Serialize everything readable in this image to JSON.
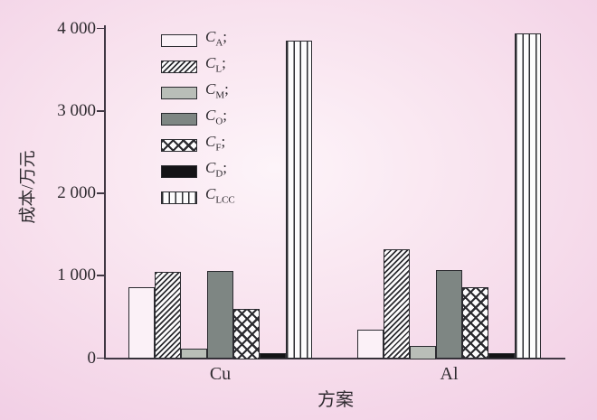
{
  "figure": {
    "background_center": "#fdf4f9",
    "background_edge": "#ebc1dc",
    "text_color": "#2f2b30",
    "axis_color": "#413844"
  },
  "chart_data": {
    "type": "bar",
    "title": "",
    "xlabel": "方案",
    "ylabel": "成本/万元",
    "categories": [
      "Cu",
      "Al"
    ],
    "ylim": [
      0,
      4000
    ],
    "grid": false,
    "legend_position": "upper-left-inside",
    "y_ticks": [
      {
        "value": 0,
        "label": "0"
      },
      {
        "value": 1000,
        "label": "1 000"
      },
      {
        "value": 2000,
        "label": "2 000"
      },
      {
        "value": 3000,
        "label": "3 000"
      },
      {
        "value": 4000,
        "label": "4 000"
      }
    ],
    "series": [
      {
        "key": "CA",
        "label_base": "C",
        "label_sub": "A",
        "label_sep": ";",
        "pattern": "plain",
        "values": [
          855,
          345
        ]
      },
      {
        "key": "CL",
        "label_base": "C",
        "label_sub": "L",
        "label_sep": ";",
        "pattern": "diag",
        "values": [
          1045,
          1320
        ]
      },
      {
        "key": "CM",
        "label_base": "C",
        "label_sub": "M",
        "label_sep": ";",
        "pattern": "lgray",
        "values": [
          110,
          150
        ]
      },
      {
        "key": "CO",
        "label_base": "C",
        "label_sub": "O",
        "label_sep": ";",
        "pattern": "gray",
        "values": [
          1060,
          1070
        ]
      },
      {
        "key": "CF",
        "label_base": "C",
        "label_sub": "F",
        "label_sep": ";",
        "pattern": "cross",
        "values": [
          600,
          860
        ]
      },
      {
        "key": "CD",
        "label_base": "C",
        "label_sub": "D",
        "label_sep": ";",
        "pattern": "black",
        "values": [
          55,
          65
        ]
      },
      {
        "key": "CLCC",
        "label_base": "C",
        "label_sub": "LCC",
        "label_sep": "",
        "pattern": "vlines",
        "values": [
          3855,
          3940
        ]
      }
    ]
  }
}
